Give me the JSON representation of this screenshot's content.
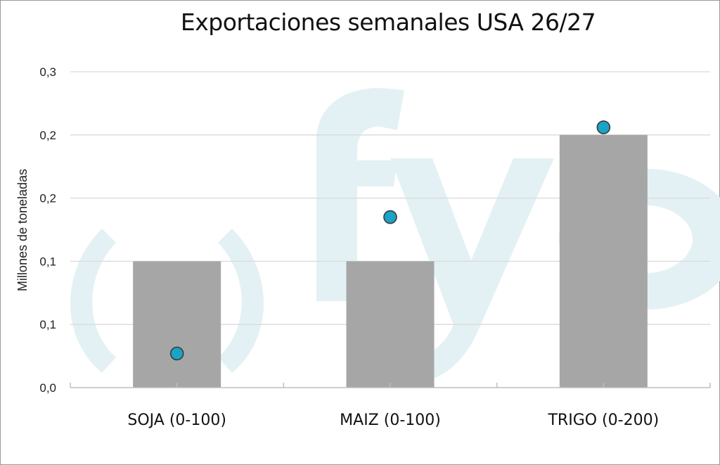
{
  "chart_data": {
    "type": "bar",
    "title": "Exportaciones semanales USA  26/27",
    "ylabel": "Millones de toneladas",
    "xlabel": "",
    "categories": [
      "SOJA (0-100)",
      "MAIZ (0-100)",
      "TRIGO (0-200)"
    ],
    "series": [
      {
        "type": "bar",
        "values": [
          0.1,
          0.1,
          0.2
        ]
      },
      {
        "type": "scatter",
        "values": [
          0.027,
          0.135,
          0.206
        ]
      }
    ],
    "ylim": [
      0,
      0.25
    ],
    "y_ticks": [
      0,
      0.05,
      0.1,
      0.15,
      0.2,
      0.25
    ],
    "y_tick_labels": [
      "0,0",
      "0,1",
      "0,1",
      "0,2",
      "0,2",
      "0,3"
    ],
    "grid": true,
    "legend": "none",
    "colors": {
      "bar": "#a6a6a6",
      "marker": "#1aa3c6",
      "marker_edge": "#3a3a3a",
      "watermark": "#e4f1f4"
    }
  },
  "watermark": {
    "text": "fyo"
  }
}
